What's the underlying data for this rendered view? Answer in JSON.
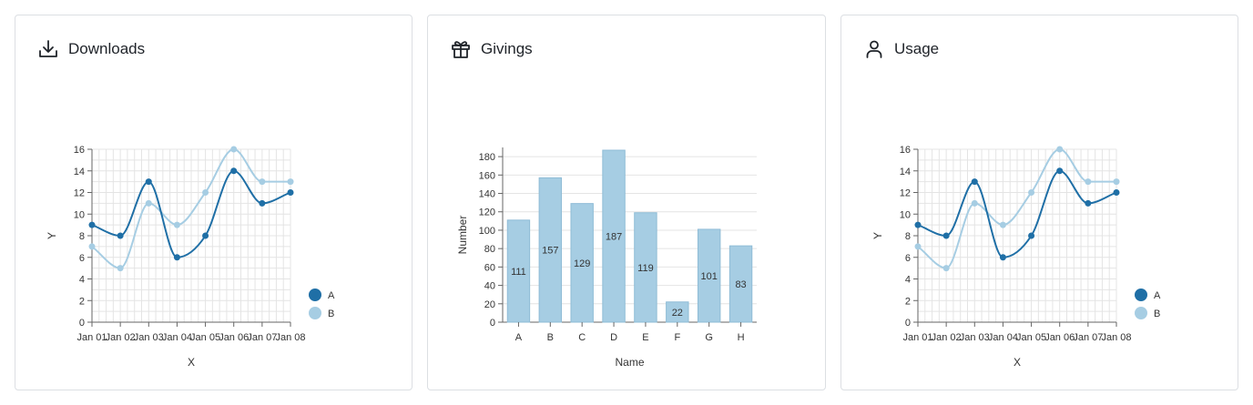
{
  "cards": [
    {
      "title": "Downloads",
      "icon": "download-icon"
    },
    {
      "title": "Givings",
      "icon": "gift-icon"
    },
    {
      "title": "Usage",
      "icon": "user-icon"
    }
  ],
  "chart_data": [
    {
      "type": "line",
      "x": [
        "Jan 01",
        "Jan 02",
        "Jan 03",
        "Jan 04",
        "Jan 05",
        "Jan 06",
        "Jan 07",
        "Jan 08"
      ],
      "series": [
        {
          "name": "A",
          "values": [
            9,
            8,
            13,
            6,
            8,
            14,
            11,
            12
          ],
          "color": "#1f6fa6"
        },
        {
          "name": "B",
          "values": [
            7,
            5,
            11,
            9,
            12,
            16,
            13,
            13
          ],
          "color": "#a6cde3"
        }
      ],
      "xlabel": "X",
      "ylabel": "Y",
      "ylim": [
        0,
        16
      ],
      "yticks": [
        0,
        2,
        4,
        6,
        8,
        10,
        12,
        14,
        16
      ],
      "grid": true,
      "legend": "bottom-right"
    },
    {
      "type": "bar",
      "categories": [
        "A",
        "B",
        "C",
        "D",
        "E",
        "F",
        "G",
        "H"
      ],
      "values": [
        111,
        157,
        129,
        187,
        119,
        22,
        101,
        83
      ],
      "xlabel": "Name",
      "ylabel": "Number",
      "ylim": [
        0,
        190
      ],
      "yticks": [
        0,
        20,
        40,
        60,
        80,
        100,
        120,
        140,
        160,
        180
      ],
      "grid": true,
      "color": "#a6cde3"
    },
    {
      "type": "line",
      "x": [
        "Jan 01",
        "Jan 02",
        "Jan 03",
        "Jan 04",
        "Jan 05",
        "Jan 06",
        "Jan 07",
        "Jan 08"
      ],
      "series": [
        {
          "name": "A",
          "values": [
            9,
            8,
            13,
            6,
            8,
            14,
            11,
            12
          ],
          "color": "#1f6fa6"
        },
        {
          "name": "B",
          "values": [
            7,
            5,
            11,
            9,
            12,
            16,
            13,
            13
          ],
          "color": "#a6cde3"
        }
      ],
      "xlabel": "X",
      "ylabel": "Y",
      "ylim": [
        0,
        16
      ],
      "yticks": [
        0,
        2,
        4,
        6,
        8,
        10,
        12,
        14,
        16
      ],
      "grid": true,
      "legend": "bottom-right"
    }
  ]
}
